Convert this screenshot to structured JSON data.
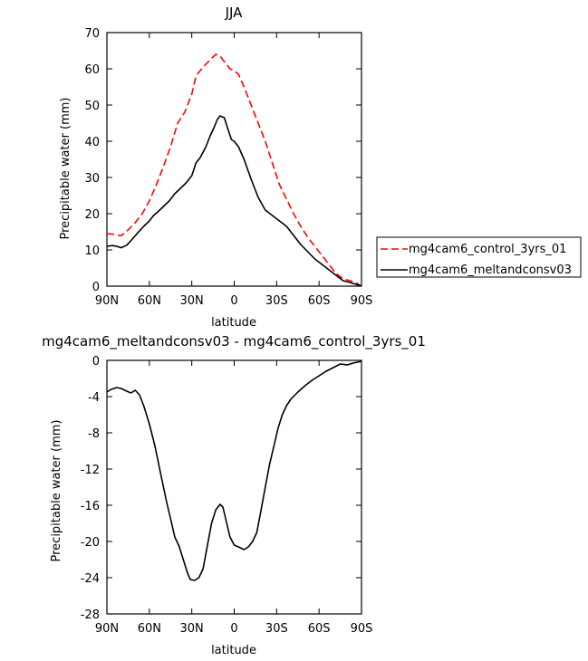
{
  "chart_data": [
    {
      "type": "line",
      "title": "JJA",
      "xlabel": "latitude",
      "ylabel": "Precipitable water (mm)",
      "ylim": [
        0,
        70
      ],
      "yticks": [
        0,
        10,
        20,
        30,
        40,
        50,
        60,
        70
      ],
      "xlim": [
        90,
        -90
      ],
      "xticks": [
        {
          "value": 90,
          "label": "90N"
        },
        {
          "value": 60,
          "label": "60N"
        },
        {
          "value": 30,
          "label": "30N"
        },
        {
          "value": 0,
          "label": "0"
        },
        {
          "value": -30,
          "label": "30S"
        },
        {
          "value": -60,
          "label": "60S"
        },
        {
          "value": -90,
          "label": "90S"
        }
      ],
      "legend_position": "outside-right",
      "series": [
        {
          "name": "mg4cam6_control_3yrs_01",
          "color": "#ff0000",
          "dash": "dashed",
          "points": [
            [
              90,
              14.5
            ],
            [
              85,
              14.3
            ],
            [
              80,
              13.9
            ],
            [
              75,
              15.5
            ],
            [
              70,
              17.5
            ],
            [
              65,
              20.0
            ],
            [
              60,
              23.5
            ],
            [
              55,
              28.0
            ],
            [
              50,
              33.0
            ],
            [
              45,
              38.5
            ],
            [
              40,
              45.0
            ],
            [
              35,
              48.0
            ],
            [
              30,
              53.0
            ],
            [
              27,
              58.0
            ],
            [
              22,
              60.5
            ],
            [
              17,
              62.5
            ],
            [
              13,
              64.0
            ],
            [
              10,
              63.5
            ],
            [
              7,
              62.0
            ],
            [
              3,
              60.0
            ],
            [
              0,
              59.5
            ],
            [
              -3,
              58.5
            ],
            [
              -7,
              55.0
            ],
            [
              -12,
              50.0
            ],
            [
              -17,
              45.0
            ],
            [
              -22,
              40.0
            ],
            [
              -27,
              34.0
            ],
            [
              -32,
              28.0
            ],
            [
              -37,
              24.0
            ],
            [
              -42,
              20.0
            ],
            [
              -47,
              16.5
            ],
            [
              -52,
              13.5
            ],
            [
              -57,
              11.0
            ],
            [
              -62,
              8.5
            ],
            [
              -67,
              6.0
            ],
            [
              -72,
              3.5
            ],
            [
              -77,
              2.0
            ],
            [
              -82,
              1.5
            ],
            [
              -86,
              1.0
            ],
            [
              -88,
              0.5
            ],
            [
              -90,
              0.0
            ]
          ]
        },
        {
          "name": "mg4cam6_meltandconsv03",
          "color": "#000000",
          "dash": "solid",
          "points": [
            [
              90,
              11.0
            ],
            [
              86,
              11.2
            ],
            [
              83,
              11.0
            ],
            [
              80,
              10.6
            ],
            [
              76,
              11.3
            ],
            [
              72,
              13.0
            ],
            [
              68,
              14.8
            ],
            [
              64,
              16.5
            ],
            [
              60,
              18.0
            ],
            [
              57,
              19.5
            ],
            [
              54,
              20.5
            ],
            [
              50,
              22.0
            ],
            [
              46,
              23.5
            ],
            [
              42,
              25.5
            ],
            [
              38,
              27.0
            ],
            [
              34,
              28.5
            ],
            [
              30,
              30.5
            ],
            [
              27,
              34.0
            ],
            [
              24,
              35.5
            ],
            [
              20,
              38.5
            ],
            [
              17,
              41.5
            ],
            [
              14,
              44.0
            ],
            [
              12,
              46.0
            ],
            [
              10,
              47.0
            ],
            [
              7,
              46.5
            ],
            [
              5,
              44.0
            ],
            [
              2,
              40.5
            ],
            [
              0,
              40.0
            ],
            [
              -3,
              38.5
            ],
            [
              -7,
              35.0
            ],
            [
              -12,
              29.5
            ],
            [
              -17,
              24.5
            ],
            [
              -22,
              21.0
            ],
            [
              -27,
              19.5
            ],
            [
              -32,
              18.0
            ],
            [
              -37,
              16.5
            ],
            [
              -42,
              14.0
            ],
            [
              -47,
              11.5
            ],
            [
              -52,
              9.5
            ],
            [
              -57,
              7.5
            ],
            [
              -62,
              6.0
            ],
            [
              -67,
              4.5
            ],
            [
              -72,
              3.0
            ],
            [
              -77,
              1.5
            ],
            [
              -82,
              1.0
            ],
            [
              -86,
              0.5
            ],
            [
              -90,
              0.0
            ]
          ]
        }
      ]
    },
    {
      "type": "line",
      "title": "mg4cam6_meltandconsv03 - mg4cam6_control_3yrs_01",
      "xlabel": "latitude",
      "ylabel": "Precipitable water (mm)",
      "ylim": [
        -28,
        0
      ],
      "yticks": [
        0,
        -4,
        -8,
        -12,
        -16,
        -20,
        -24,
        -28
      ],
      "xlim": [
        90,
        -90
      ],
      "xticks": [
        {
          "value": 90,
          "label": "90N"
        },
        {
          "value": 60,
          "label": "60N"
        },
        {
          "value": 30,
          "label": "30N"
        },
        {
          "value": 0,
          "label": "0"
        },
        {
          "value": -30,
          "label": "30S"
        },
        {
          "value": -60,
          "label": "60S"
        },
        {
          "value": -90,
          "label": "90S"
        }
      ],
      "series": [
        {
          "color": "#000000",
          "dash": "solid",
          "points": [
            [
              90,
              -3.5
            ],
            [
              87,
              -3.2
            ],
            [
              83,
              -3.0
            ],
            [
              80,
              -3.1
            ],
            [
              76,
              -3.4
            ],
            [
              73,
              -3.6
            ],
            [
              70,
              -3.3
            ],
            [
              67,
              -3.8
            ],
            [
              64,
              -5.0
            ],
            [
              60,
              -7.0
            ],
            [
              56,
              -9.5
            ],
            [
              52,
              -12.5
            ],
            [
              48,
              -15.5
            ],
            [
              45,
              -17.5
            ],
            [
              42,
              -19.5
            ],
            [
              39,
              -20.5
            ],
            [
              36,
              -22.0
            ],
            [
              33,
              -23.5
            ],
            [
              31,
              -24.2
            ],
            [
              28,
              -24.3
            ],
            [
              25,
              -24.0
            ],
            [
              22,
              -23.0
            ],
            [
              19,
              -20.5
            ],
            [
              16,
              -18.0
            ],
            [
              13,
              -16.5
            ],
            [
              10,
              -15.9
            ],
            [
              8,
              -16.2
            ],
            [
              6,
              -17.5
            ],
            [
              3,
              -19.5
            ],
            [
              0,
              -20.4
            ],
            [
              -3,
              -20.6
            ],
            [
              -7,
              -20.9
            ],
            [
              -10,
              -20.6
            ],
            [
              -13,
              -20.0
            ],
            [
              -16,
              -19.0
            ],
            [
              -19,
              -16.5
            ],
            [
              -22,
              -14.0
            ],
            [
              -25,
              -11.5
            ],
            [
              -28,
              -9.5
            ],
            [
              -31,
              -7.5
            ],
            [
              -34,
              -6.0
            ],
            [
              -37,
              -5.0
            ],
            [
              -40,
              -4.3
            ],
            [
              -45,
              -3.5
            ],
            [
              -50,
              -2.8
            ],
            [
              -55,
              -2.2
            ],
            [
              -60,
              -1.7
            ],
            [
              -65,
              -1.2
            ],
            [
              -70,
              -0.8
            ],
            [
              -75,
              -0.4
            ],
            [
              -80,
              -0.5
            ],
            [
              -84,
              -0.3
            ],
            [
              -87,
              -0.2
            ],
            [
              -90,
              -0.1
            ]
          ]
        }
      ]
    }
  ]
}
